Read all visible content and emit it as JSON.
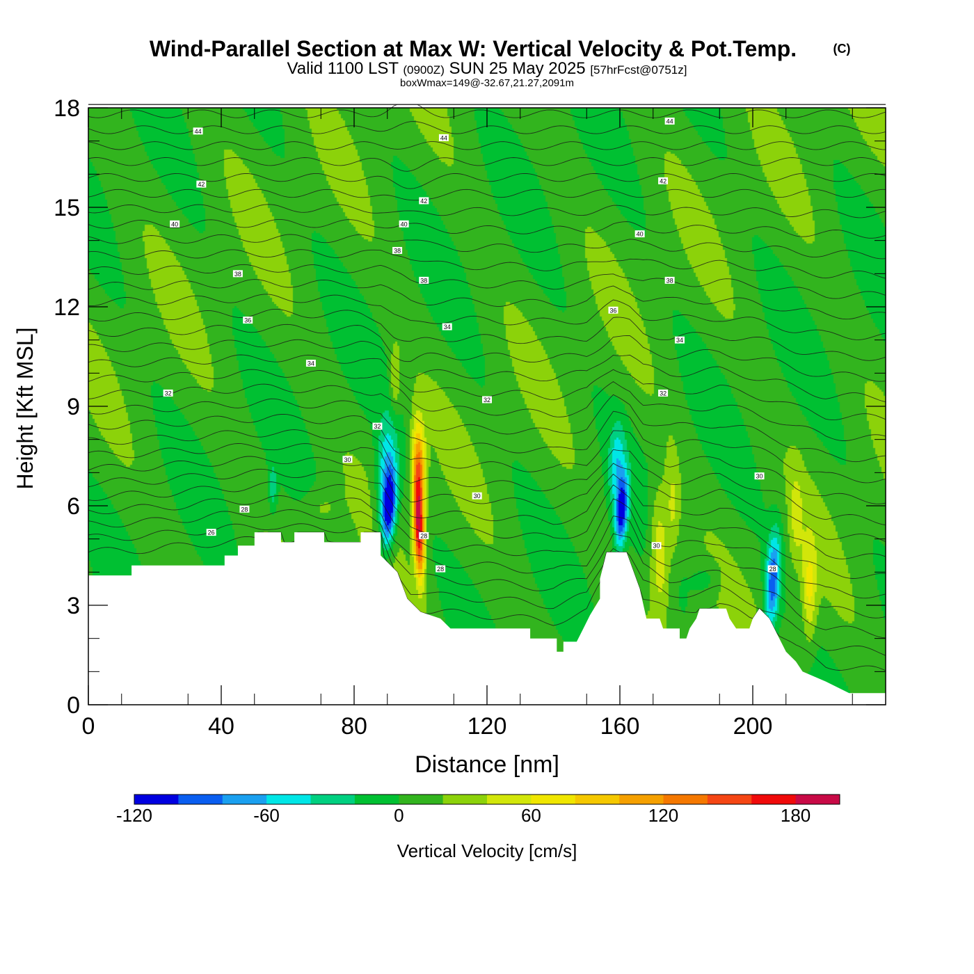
{
  "header": {
    "title": "Wind-Parallel Section at Max W: Vertical Velocity & Pot.Temp.",
    "title_mark": "(C)",
    "valid_prefix": "Valid 1100 LST",
    "valid_z": "(0900Z)",
    "valid_date": "SUN 25 May 2025",
    "valid_fcst": "[57hrFcst@0751z]",
    "box_info": "boxWmax=149@-32.67,21.27,2091m"
  },
  "chart_data": {
    "type": "heatmap",
    "xlabel": "Distance [nm]",
    "ylabel": "Height [Kft MSL]",
    "xlim": [
      0,
      240
    ],
    "ylim": [
      0,
      18
    ],
    "xticks": [
      0,
      40,
      80,
      120,
      160,
      200
    ],
    "xtick_labels": [
      "0",
      "40",
      "80",
      "120",
      "160",
      "200"
    ],
    "yticks": [
      0,
      3,
      6,
      9,
      12,
      15,
      18
    ],
    "ytick_labels": [
      "0",
      "3",
      "6",
      "9",
      "12",
      "15",
      "18"
    ],
    "colorbar": {
      "label": "Vertical Velocity [cm/s]",
      "levels": [
        -120,
        -100,
        -80,
        -60,
        -40,
        -20,
        0,
        20,
        40,
        60,
        80,
        100,
        120,
        140,
        160,
        180,
        200
      ],
      "tick_values": [
        -120,
        -60,
        0,
        60,
        120,
        180
      ],
      "tick_labels": [
        "-120",
        "-60",
        "0",
        "60",
        "120",
        "180"
      ],
      "colors": [
        "#0000e0",
        "#0a5ef0",
        "#1aa0f0",
        "#00e6e6",
        "#00d080",
        "#00c032",
        "#32b41e",
        "#8cd20a",
        "#d2e60a",
        "#f0e600",
        "#f5c800",
        "#f5a000",
        "#f57800",
        "#f54614",
        "#f00a0a",
        "#c80a46"
      ]
    },
    "terrain_kft": [
      [
        0,
        3.9
      ],
      [
        13,
        3.9
      ],
      [
        13,
        4.2
      ],
      [
        41,
        4.2
      ],
      [
        41,
        4.5
      ],
      [
        45,
        4.5
      ],
      [
        45,
        4.8
      ],
      [
        50,
        4.8
      ],
      [
        50,
        5.2
      ],
      [
        58,
        5.2
      ],
      [
        58,
        4.9
      ],
      [
        62,
        4.9
      ],
      [
        62,
        5.2
      ],
      [
        71,
        5.2
      ],
      [
        71,
        4.9
      ],
      [
        82,
        4.9
      ],
      [
        82,
        5.2
      ],
      [
        88,
        5.2
      ],
      [
        88,
        4.5
      ],
      [
        93,
        4.0
      ],
      [
        96,
        3.2
      ],
      [
        100,
        2.8
      ],
      [
        106,
        2.6
      ],
      [
        109,
        2.3
      ],
      [
        133,
        2.3
      ],
      [
        133,
        2.0
      ],
      [
        141,
        2.0
      ],
      [
        141,
        1.6
      ],
      [
        143,
        1.6
      ],
      [
        143,
        1.9
      ],
      [
        147,
        1.9
      ],
      [
        149,
        2.3
      ],
      [
        151,
        2.7
      ],
      [
        154,
        3.2
      ],
      [
        154,
        3.8
      ],
      [
        156,
        4.6
      ],
      [
        162,
        4.6
      ],
      [
        166,
        3.5
      ],
      [
        168,
        2.6
      ],
      [
        172,
        2.6
      ],
      [
        173,
        2.3
      ],
      [
        178,
        2.3
      ],
      [
        178,
        2.0
      ],
      [
        180,
        2.0
      ],
      [
        181,
        2.3
      ],
      [
        183,
        2.6
      ],
      [
        184,
        2.9
      ],
      [
        192,
        2.9
      ],
      [
        193,
        2.6
      ],
      [
        195,
        2.3
      ],
      [
        199,
        2.3
      ],
      [
        200,
        2.6
      ],
      [
        202,
        2.9
      ],
      [
        205,
        2.6
      ],
      [
        208,
        2.0
      ],
      [
        210,
        1.6
      ],
      [
        213,
        1.3
      ],
      [
        215,
        1.0
      ],
      [
        222,
        0.7
      ],
      [
        229,
        0.35
      ],
      [
        240,
        0.35
      ]
    ],
    "w_cells": [
      {
        "x": 90.5,
        "y": 5.9,
        "sx": 2.2,
        "sy": 1.2,
        "tilt": 0.55,
        "w": -130
      },
      {
        "x": 89.5,
        "y": 7.1,
        "sx": 3.0,
        "sy": 1.6,
        "tilt": 0.5,
        "w": -55
      },
      {
        "x": 99.5,
        "y": 5.3,
        "sx": 1.6,
        "sy": 1.5,
        "tilt": -0.3,
        "w": 175
      },
      {
        "x": 99.5,
        "y": 7.2,
        "sx": 2.0,
        "sy": 1.4,
        "tilt": -0.2,
        "w": 110
      },
      {
        "x": 92.3,
        "y": 9.8,
        "sx": 1.6,
        "sy": 1.0,
        "tilt": 0.0,
        "w": 40
      },
      {
        "x": 160.5,
        "y": 5.8,
        "sx": 1.8,
        "sy": 1.1,
        "tilt": 0.55,
        "w": -115
      },
      {
        "x": 159.0,
        "y": 7.2,
        "sx": 2.4,
        "sy": 1.3,
        "tilt": 0.4,
        "w": -50
      },
      {
        "x": 172.0,
        "y": 4.6,
        "sx": 3.0,
        "sy": 1.9,
        "tilt": -0.2,
        "w": 60
      },
      {
        "x": 176.0,
        "y": 6.0,
        "sx": 2.0,
        "sy": 1.5,
        "tilt": -0.2,
        "w": 35
      },
      {
        "x": 206.0,
        "y": 3.7,
        "sx": 2.2,
        "sy": 1.5,
        "tilt": 0.55,
        "w": -100
      },
      {
        "x": 217.0,
        "y": 3.4,
        "sx": 2.2,
        "sy": 1.6,
        "tilt": 0.0,
        "w": 55
      },
      {
        "x": 213.0,
        "y": 5.6,
        "sx": 2.0,
        "sy": 1.5,
        "tilt": 0.0,
        "w": 30
      },
      {
        "x": 55.5,
        "y": 6.5,
        "sx": 1.3,
        "sy": 0.8,
        "tilt": 0.0,
        "w": -40
      },
      {
        "x": 186.0,
        "y": 3.8,
        "sx": 4.0,
        "sy": 0.5,
        "tilt": 0.0,
        "w": -22
      },
      {
        "x": 70.0,
        "y": 5.9,
        "sx": 5.0,
        "sy": 0.6,
        "tilt": 0.0,
        "w": 22
      }
    ],
    "isentrope_labels": [
      {
        "x": 33,
        "y": 17.3,
        "text": "44"
      },
      {
        "x": 107,
        "y": 17.1,
        "text": "44"
      },
      {
        "x": 175,
        "y": 17.6,
        "text": "44"
      },
      {
        "x": 34,
        "y": 15.7,
        "text": "42"
      },
      {
        "x": 101,
        "y": 15.2,
        "text": "42"
      },
      {
        "x": 173,
        "y": 15.8,
        "text": "42"
      },
      {
        "x": 26,
        "y": 14.5,
        "text": "40"
      },
      {
        "x": 95,
        "y": 14.5,
        "text": "40"
      },
      {
        "x": 166,
        "y": 14.2,
        "text": "40"
      },
      {
        "x": 93,
        "y": 13.7,
        "text": "38"
      },
      {
        "x": 45,
        "y": 13.0,
        "text": "38"
      },
      {
        "x": 101,
        "y": 12.8,
        "text": "38"
      },
      {
        "x": 175,
        "y": 12.8,
        "text": "38"
      },
      {
        "x": 48,
        "y": 11.6,
        "text": "36"
      },
      {
        "x": 158,
        "y": 11.9,
        "text": "36"
      },
      {
        "x": 108,
        "y": 11.4,
        "text": "34"
      },
      {
        "x": 67,
        "y": 10.3,
        "text": "34"
      },
      {
        "x": 178,
        "y": 11.0,
        "text": "34"
      },
      {
        "x": 24,
        "y": 9.4,
        "text": "32"
      },
      {
        "x": 120,
        "y": 9.2,
        "text": "32"
      },
      {
        "x": 173,
        "y": 9.4,
        "text": "32"
      },
      {
        "x": 87,
        "y": 8.4,
        "text": "32"
      },
      {
        "x": 78,
        "y": 7.4,
        "text": "30"
      },
      {
        "x": 117,
        "y": 6.3,
        "text": "30"
      },
      {
        "x": 202,
        "y": 6.9,
        "text": "30"
      },
      {
        "x": 171,
        "y": 4.8,
        "text": "30"
      },
      {
        "x": 47,
        "y": 5.9,
        "text": "28"
      },
      {
        "x": 101,
        "y": 5.1,
        "text": "28"
      },
      {
        "x": 106,
        "y": 4.1,
        "text": "28"
      },
      {
        "x": 206,
        "y": 4.1,
        "text": "28"
      },
      {
        "x": 37,
        "y": 5.2,
        "text": "26"
      }
    ]
  }
}
